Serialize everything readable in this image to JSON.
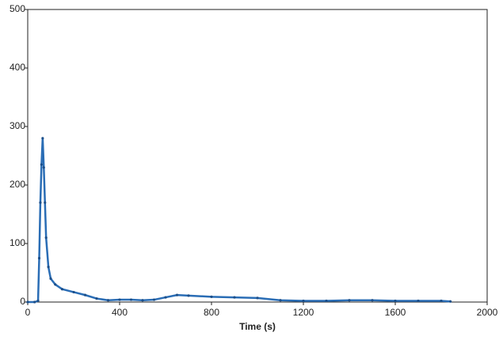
{
  "chart_data": {
    "type": "line",
    "xlabel": "Time (s)",
    "x": [
      0,
      30,
      45,
      50,
      55,
      60,
      65,
      70,
      75,
      80,
      90,
      100,
      120,
      150,
      200,
      250,
      300,
      350,
      400,
      450,
      500,
      550,
      600,
      650,
      700,
      800,
      900,
      1000,
      1100,
      1200,
      1300,
      1400,
      1500,
      1600,
      1700,
      1800,
      1840
    ],
    "series": [
      {
        "color": "#2a6db5",
        "values": [
          0,
          0,
          2,
          75,
          170,
          235,
          280,
          230,
          170,
          110,
          60,
          40,
          30,
          22,
          17,
          12,
          6,
          3,
          4,
          4,
          3,
          4,
          8,
          12,
          11,
          9,
          8,
          7,
          3,
          2,
          2,
          3,
          3,
          2,
          2,
          2,
          1
        ]
      }
    ],
    "xlim": [
      0,
      2000
    ],
    "xticks": [
      0,
      400,
      800,
      1200,
      1600,
      2000
    ],
    "ylim": [
      0,
      500
    ],
    "yticks": [
      0,
      100,
      200,
      300,
      400,
      500
    ]
  }
}
